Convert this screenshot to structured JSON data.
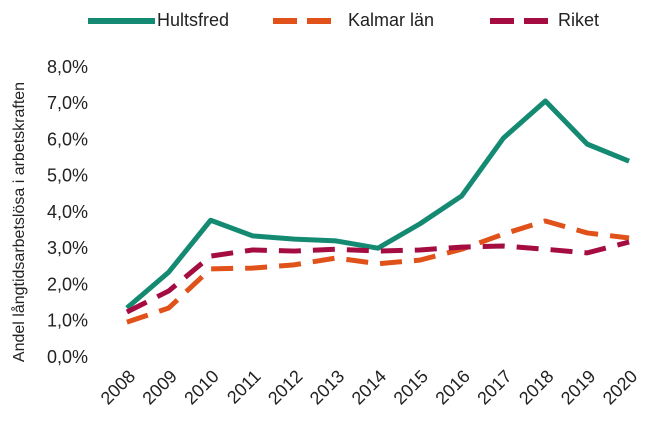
{
  "chart_data": {
    "type": "line",
    "ylabel": "Andel långtidsarbetslösa i arbetskraften",
    "categories": [
      "2008",
      "2009",
      "2010",
      "2011",
      "2012",
      "2013",
      "2014",
      "2015",
      "2016",
      "2017",
      "2018",
      "2019",
      "2020"
    ],
    "series": [
      {
        "name": "Hultsfred",
        "color": "#148a73",
        "dash": "none",
        "values": [
          1.38,
          2.37,
          3.8,
          3.37,
          3.28,
          3.23,
          3.03,
          3.7,
          4.47,
          6.07,
          7.09,
          5.9,
          5.43
        ]
      },
      {
        "name": "Kalmar län",
        "color": "#e0521a",
        "dash": "22 12",
        "values": [
          0.99,
          1.38,
          2.46,
          2.48,
          2.57,
          2.76,
          2.6,
          2.7,
          3.0,
          3.42,
          3.78,
          3.45,
          3.31
        ]
      },
      {
        "name": "Riket",
        "color": "#a50c42",
        "dash": "22 12",
        "values": [
          1.27,
          1.85,
          2.81,
          2.98,
          2.95,
          3.0,
          2.95,
          2.98,
          3.06,
          3.09,
          3.0,
          2.9,
          3.2
        ]
      }
    ],
    "ylim": [
      0,
      8
    ],
    "yticks": [
      {
        "value": 0,
        "label": "0,0%"
      },
      {
        "value": 1,
        "label": "1,0%"
      },
      {
        "value": 2,
        "label": "2,0%"
      },
      {
        "value": 3,
        "label": "3,0%"
      },
      {
        "value": 4,
        "label": "4,0%"
      },
      {
        "value": 5,
        "label": "5,0%"
      },
      {
        "value": 6,
        "label": "6,0%"
      },
      {
        "value": 7,
        "label": "7,0%"
      },
      {
        "value": 8,
        "label": "8,0%"
      }
    ],
    "grid": false,
    "legend": "top"
  }
}
